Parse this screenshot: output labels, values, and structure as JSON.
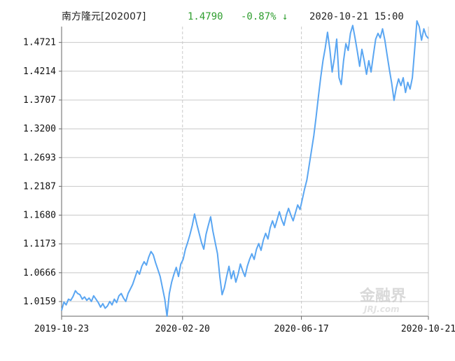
{
  "header": {
    "name": "南方隆元[202007]",
    "price": "1.4790",
    "change": "-0.87% ↓",
    "datetime": "2020-10-21 15:00"
  },
  "watermark": {
    "cn": "金融界",
    "en": "JRJ.com"
  },
  "colors": {
    "line": "#5aa6f2",
    "up_down_text": "#2f9e2f",
    "grid": "#c8c8c8",
    "axis": "#666666"
  },
  "chart_data": {
    "type": "line",
    "title": "",
    "xlabel": "",
    "ylabel": "",
    "x_start": "2019-10-23",
    "x_end": "2020-10-21",
    "xticks": [
      "2019-10-23",
      "2020-02-20",
      "2020-06-17",
      "2020-10-21"
    ],
    "yticks": [
      "1.0159",
      "1.0666",
      "1.1173",
      "1.1680",
      "1.2187",
      "1.2693",
      "1.3200",
      "1.3707",
      "1.4214",
      "1.4721"
    ],
    "ylim": [
      0.99,
      1.5
    ],
    "grid": true,
    "legend": "none",
    "series": [
      {
        "values": [
          1.0,
          1.015,
          1.01,
          1.02,
          1.018,
          1.025,
          1.035,
          1.03,
          1.028,
          1.02,
          1.024,
          1.018,
          1.022,
          1.016,
          1.026,
          1.02,
          1.014,
          1.006,
          1.012,
          1.004,
          1.008,
          1.016,
          1.01,
          1.02,
          1.014,
          1.026,
          1.03,
          1.022,
          1.016,
          1.03,
          1.038,
          1.046,
          1.058,
          1.07,
          1.064,
          1.078,
          1.086,
          1.08,
          1.094,
          1.104,
          1.098,
          1.084,
          1.072,
          1.06,
          1.04,
          1.02,
          0.99,
          1.03,
          1.05,
          1.064,
          1.076,
          1.06,
          1.082,
          1.09,
          1.108,
          1.12,
          1.134,
          1.15,
          1.17,
          1.152,
          1.136,
          1.12,
          1.108,
          1.134,
          1.15,
          1.165,
          1.14,
          1.12,
          1.1,
          1.06,
          1.028,
          1.04,
          1.06,
          1.078,
          1.056,
          1.07,
          1.05,
          1.064,
          1.082,
          1.07,
          1.06,
          1.078,
          1.09,
          1.1,
          1.09,
          1.108,
          1.118,
          1.106,
          1.124,
          1.136,
          1.126,
          1.146,
          1.158,
          1.146,
          1.16,
          1.174,
          1.16,
          1.15,
          1.168,
          1.18,
          1.168,
          1.158,
          1.172,
          1.186,
          1.178,
          1.196,
          1.214,
          1.23,
          1.256,
          1.282,
          1.308,
          1.34,
          1.376,
          1.41,
          1.44,
          1.462,
          1.49,
          1.46,
          1.42,
          1.444,
          1.478,
          1.41,
          1.398,
          1.44,
          1.47,
          1.458,
          1.488,
          1.502,
          1.48,
          1.456,
          1.43,
          1.46,
          1.44,
          1.416,
          1.44,
          1.42,
          1.45,
          1.478,
          1.488,
          1.48,
          1.496,
          1.476,
          1.45,
          1.424,
          1.4,
          1.37,
          1.392,
          1.408,
          1.396,
          1.41,
          1.384,
          1.402,
          1.39,
          1.41,
          1.46,
          1.51,
          1.5,
          1.476,
          1.496,
          1.484,
          1.479
        ]
      }
    ]
  }
}
